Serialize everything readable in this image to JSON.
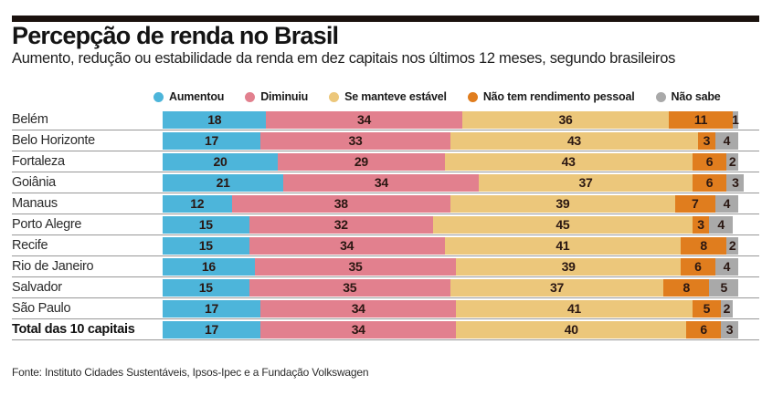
{
  "header": {
    "title": "Percepção de renda no Brasil",
    "subtitle": "Aumento, redução ou estabilidade da renda em dez capitais nos últimos 12 meses, segundo brasileiros"
  },
  "legend": [
    {
      "label": "Aumentou",
      "color": "#4db5da"
    },
    {
      "label": "Diminuiu",
      "color": "#e2808e"
    },
    {
      "label": "Se manteve estável",
      "color": "#ecc77b"
    },
    {
      "label": "Não tem rendimento pessoal",
      "color": "#e07d1e"
    },
    {
      "label": "Não sabe",
      "color": "#a9a9a9"
    }
  ],
  "chart_data": {
    "type": "bar",
    "stacked": true,
    "orientation": "horizontal",
    "xlim": [
      0,
      100
    ],
    "value_labels": true,
    "legend_position": "top",
    "categories": [
      "Belém",
      "Belo Horizonte",
      "Fortaleza",
      "Goiânia",
      "Manaus",
      "Porto Alegre",
      "Recife",
      "Rio de Janeiro",
      "Salvador",
      "São Paulo",
      "Total das 10 capitais"
    ],
    "series": [
      {
        "name": "Aumentou",
        "color": "#4db5da",
        "values": [
          18,
          17,
          20,
          21,
          12,
          15,
          15,
          16,
          15,
          17,
          17
        ]
      },
      {
        "name": "Diminuiu",
        "color": "#e2808e",
        "values": [
          34,
          33,
          29,
          34,
          38,
          32,
          34,
          35,
          35,
          34,
          34
        ]
      },
      {
        "name": "Se manteve estável",
        "color": "#ecc77b",
        "values": [
          36,
          43,
          43,
          37,
          39,
          45,
          41,
          39,
          37,
          41,
          40
        ]
      },
      {
        "name": "Não tem rendimento pessoal",
        "color": "#e07d1e",
        "values": [
          11,
          3,
          6,
          6,
          7,
          3,
          8,
          6,
          8,
          5,
          6
        ]
      },
      {
        "name": "Não sabe",
        "color": "#a9a9a9",
        "values": [
          1,
          4,
          2,
          3,
          4,
          4,
          2,
          4,
          5,
          2,
          3
        ]
      }
    ]
  },
  "footer": {
    "source": "Fonte: Instituto Cidades Sustentáveis, Ipsos-Ipec e a Fundação Volkswagen"
  }
}
